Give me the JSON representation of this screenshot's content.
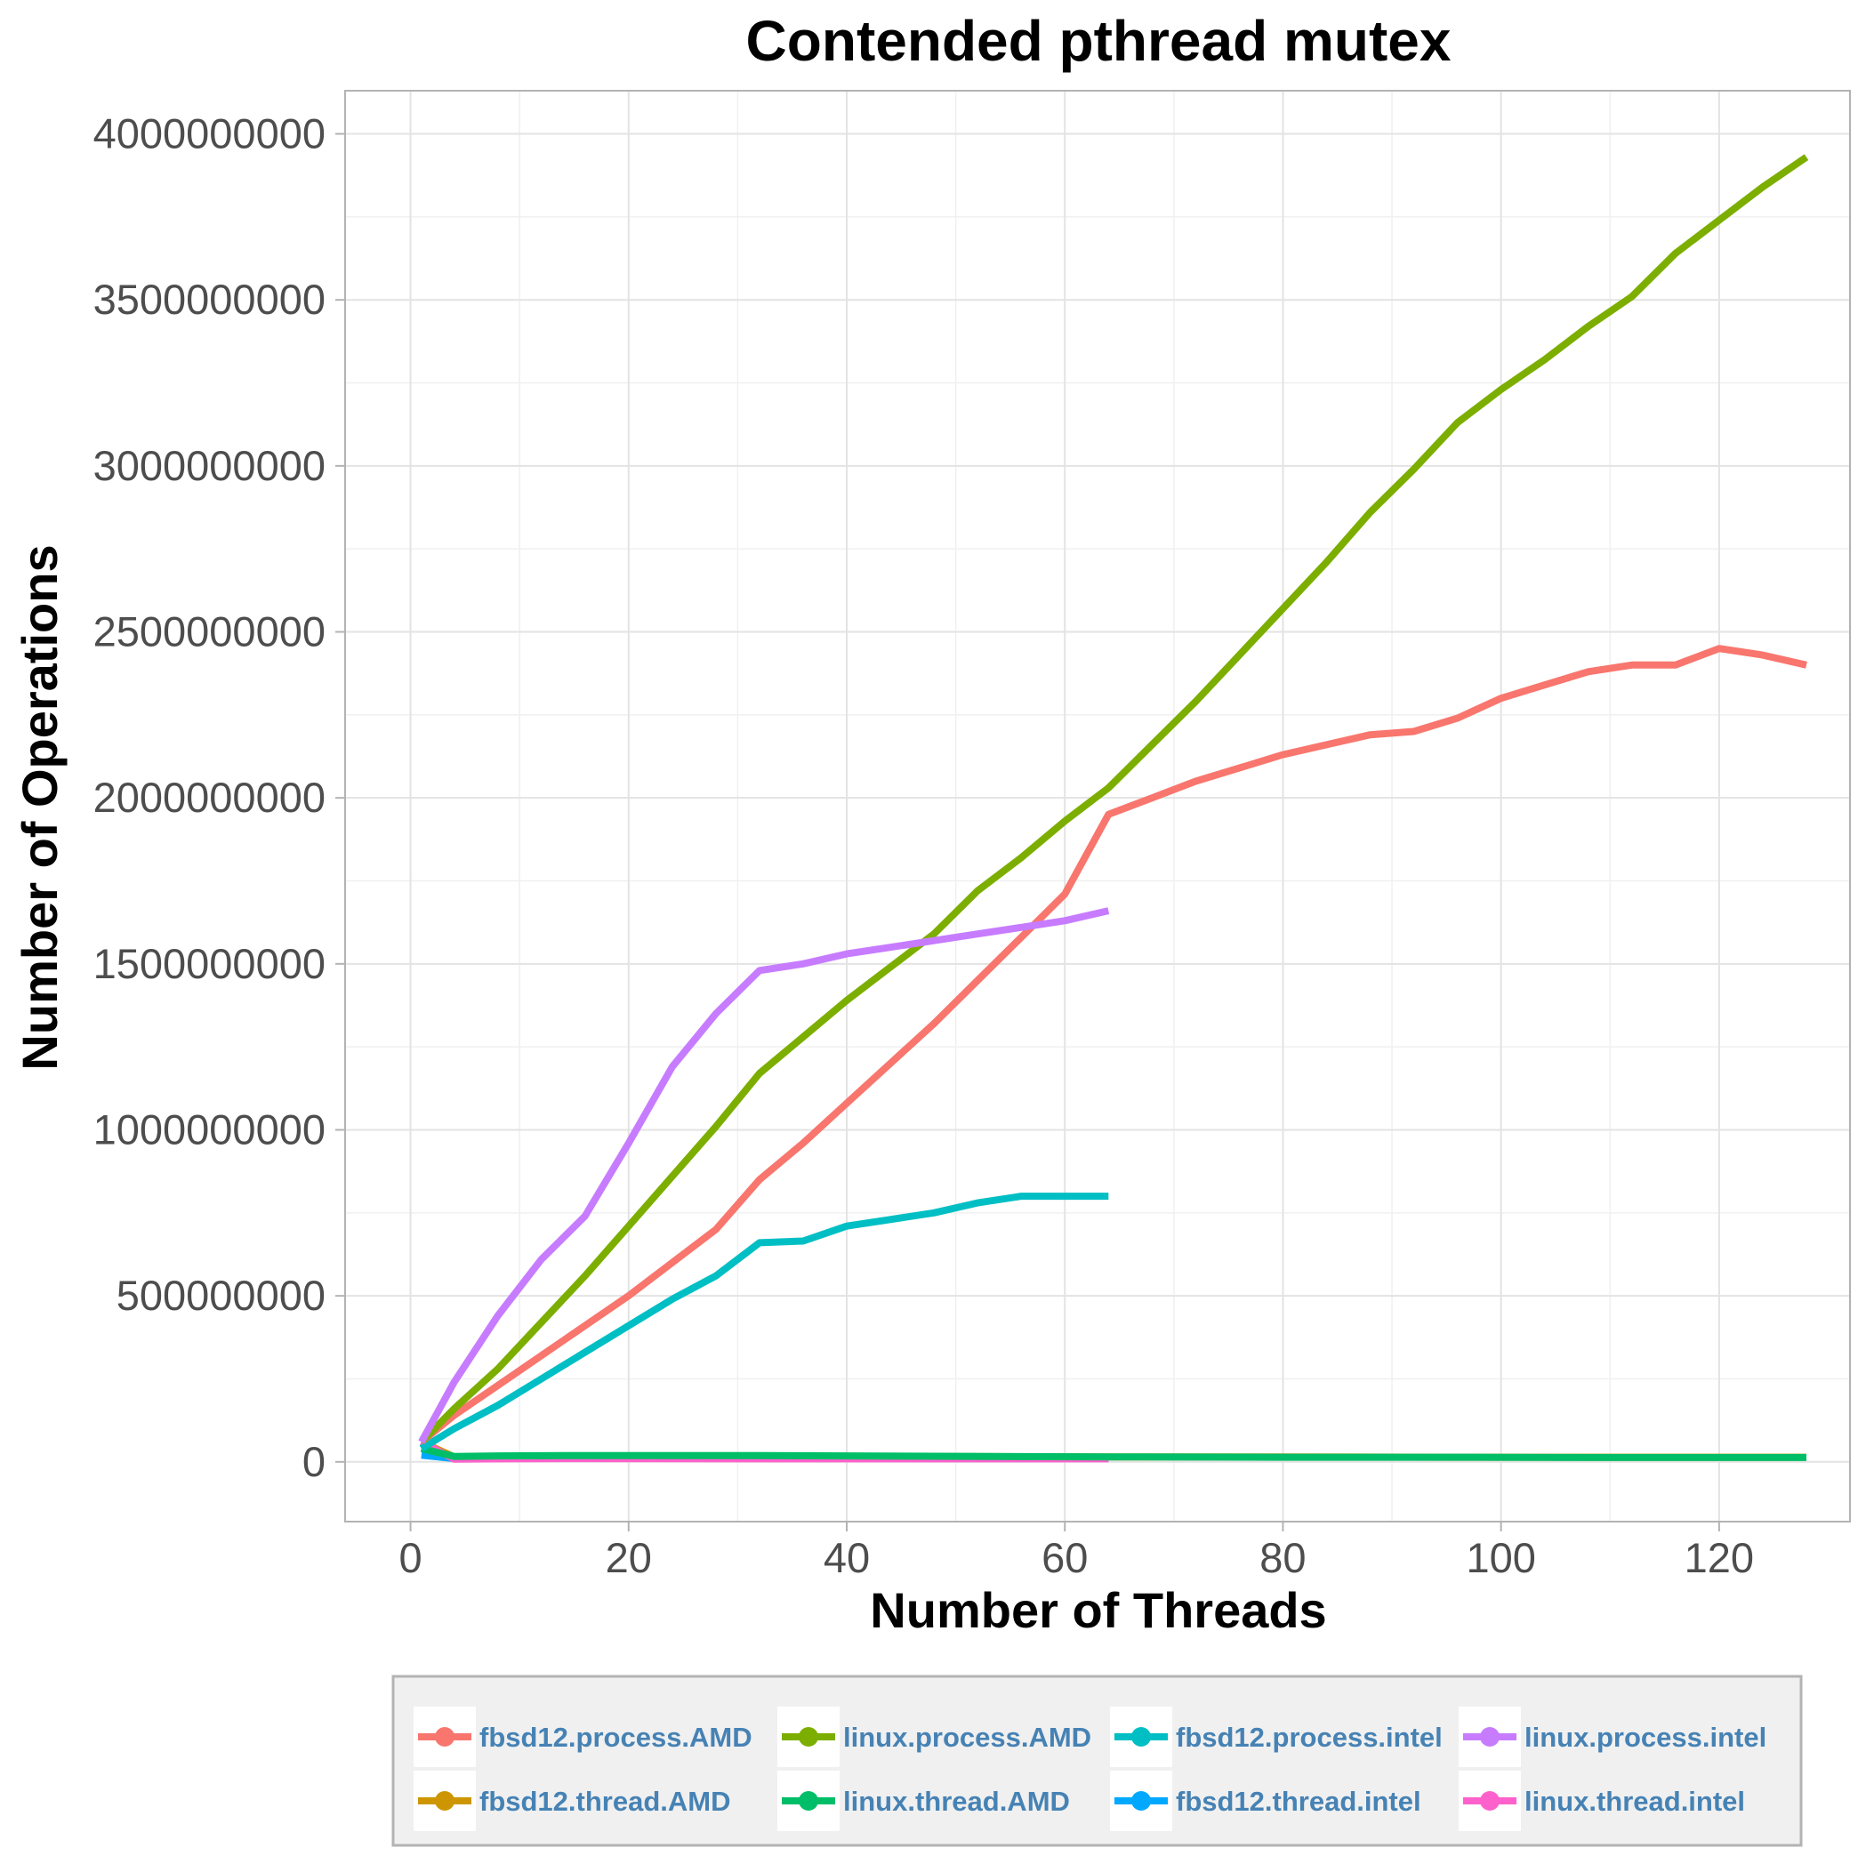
{
  "chart_data": {
    "type": "line",
    "title": "Contended pthread mutex",
    "xlabel": "Number of Threads",
    "ylabel": "Number of Operations",
    "xlim": [
      -6,
      132
    ],
    "ylim": [
      -180000000,
      4130000000
    ],
    "x_ticks": [
      0,
      20,
      40,
      60,
      80,
      100,
      120
    ],
    "x_tick_labels": [
      "0",
      "20",
      "40",
      "60",
      "80",
      "100",
      "120"
    ],
    "y_ticks": [
      0,
      500000000,
      1000000000,
      1500000000,
      2000000000,
      2500000000,
      3000000000,
      3500000000,
      4000000000
    ],
    "y_tick_labels": [
      "0",
      "500000000",
      "1000000000",
      "1500000000",
      "2000000000",
      "2500000000",
      "3000000000",
      "3500000000",
      "4000000000"
    ],
    "grid": true,
    "legend_position": "bottom",
    "series": [
      {
        "name": "fbsd12.process.AMD",
        "color": "#F8766D",
        "x": [
          1,
          4,
          8,
          12,
          16,
          20,
          24,
          28,
          32,
          36,
          40,
          44,
          48,
          52,
          56,
          60,
          64,
          68,
          72,
          76,
          80,
          84,
          88,
          92,
          96,
          100,
          104,
          108,
          112,
          116,
          120,
          124,
          128
        ],
        "y": [
          60000000,
          140000000,
          230000000,
          320000000,
          410000000,
          500000000,
          600000000,
          700000000,
          850000000,
          960000000,
          1080000000,
          1200000000,
          1320000000,
          1450000000,
          1580000000,
          1710000000,
          1950000000,
          2000000000,
          2050000000,
          2090000000,
          2130000000,
          2160000000,
          2190000000,
          2200000000,
          2240000000,
          2300000000,
          2340000000,
          2380000000,
          2400000000,
          2400000000,
          2450000000,
          2430000000,
          2400000000
        ]
      },
      {
        "name": "linux.process.AMD",
        "color": "#7CAE00",
        "x": [
          1,
          4,
          8,
          12,
          16,
          20,
          24,
          28,
          32,
          36,
          40,
          44,
          48,
          52,
          56,
          60,
          64,
          68,
          72,
          76,
          80,
          84,
          88,
          92,
          96,
          100,
          104,
          108,
          112,
          116,
          120,
          124,
          128
        ],
        "y": [
          60000000,
          160000000,
          280000000,
          420000000,
          560000000,
          710000000,
          860000000,
          1010000000,
          1170000000,
          1280000000,
          1390000000,
          1490000000,
          1590000000,
          1720000000,
          1820000000,
          1930000000,
          2030000000,
          2160000000,
          2290000000,
          2430000000,
          2570000000,
          2710000000,
          2860000000,
          2990000000,
          3130000000,
          3230000000,
          3320000000,
          3420000000,
          3510000000,
          3640000000,
          3740000000,
          3840000000,
          3930000000
        ]
      },
      {
        "name": "fbsd12.process.intel",
        "color": "#00BFC4",
        "x": [
          1,
          4,
          8,
          12,
          16,
          20,
          24,
          28,
          32,
          36,
          40,
          44,
          48,
          52,
          56,
          60,
          64
        ],
        "y": [
          40000000,
          100000000,
          170000000,
          250000000,
          330000000,
          410000000,
          490000000,
          560000000,
          660000000,
          665000000,
          710000000,
          730000000,
          750000000,
          780000000,
          800000000,
          800000000,
          800000000
        ]
      },
      {
        "name": "linux.process.intel",
        "color": "#C77CFF",
        "x": [
          1,
          4,
          8,
          12,
          16,
          20,
          24,
          28,
          32,
          36,
          40,
          44,
          48,
          52,
          56,
          60,
          64
        ],
        "y": [
          60000000,
          240000000,
          440000000,
          610000000,
          740000000,
          960000000,
          1190000000,
          1350000000,
          1480000000,
          1500000000,
          1530000000,
          1550000000,
          1570000000,
          1590000000,
          1610000000,
          1630000000,
          1660000000
        ]
      },
      {
        "name": "fbsd12.thread.AMD",
        "color": "#CD9600",
        "x": [
          1,
          4,
          8,
          16,
          32,
          48,
          64,
          80,
          96,
          112,
          128
        ],
        "y": [
          60000000,
          15000000,
          16000000,
          17000000,
          17000000,
          16000000,
          15000000,
          15000000,
          14000000,
          14000000,
          14000000
        ]
      },
      {
        "name": "linux.thread.AMD",
        "color": "#00BE67",
        "x": [
          1,
          4,
          8,
          16,
          32,
          48,
          64,
          80,
          96,
          112,
          128
        ],
        "y": [
          40000000,
          16000000,
          18000000,
          19000000,
          19000000,
          17000000,
          15000000,
          14000000,
          14000000,
          13000000,
          13000000
        ]
      },
      {
        "name": "fbsd12.thread.intel",
        "color": "#00A9FF",
        "x": [
          1,
          4,
          8,
          16,
          32,
          48,
          64
        ],
        "y": [
          20000000,
          10000000,
          11000000,
          11000000,
          11000000,
          10000000,
          10000000
        ]
      },
      {
        "name": "linux.thread.intel",
        "color": "#FF61CC",
        "x": [
          1,
          4,
          8,
          16,
          32,
          48,
          64
        ],
        "y": [
          60000000,
          8000000,
          9000000,
          10000000,
          9000000,
          9000000,
          9000000
        ]
      }
    ]
  }
}
